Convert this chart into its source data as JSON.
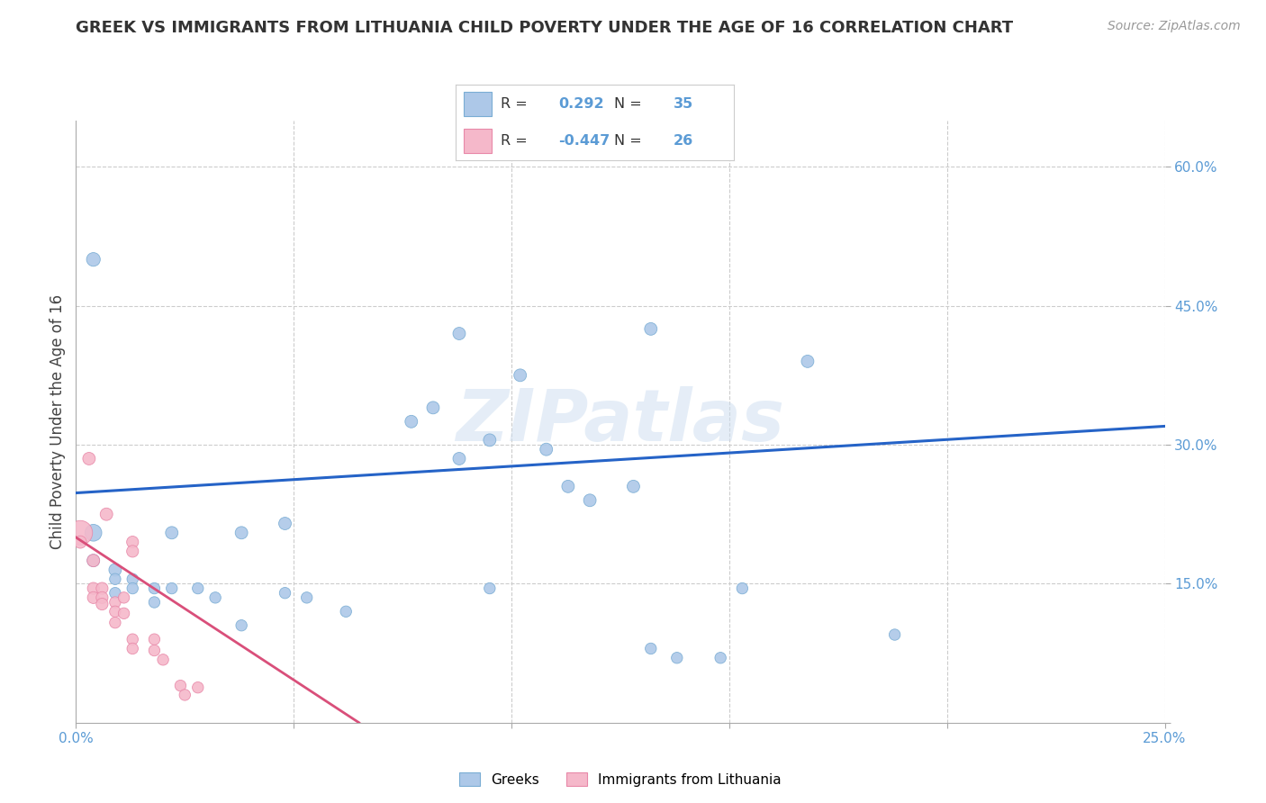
{
  "title": "GREEK VS IMMIGRANTS FROM LITHUANIA CHILD POVERTY UNDER THE AGE OF 16 CORRELATION CHART",
  "source": "Source: ZipAtlas.com",
  "ylabel": "Child Poverty Under the Age of 16",
  "xlim": [
    0.0,
    0.25
  ],
  "ylim": [
    0.0,
    0.65
  ],
  "watermark": "ZIPatlas",
  "blue_R": "0.292",
  "blue_N": "35",
  "pink_R": "-0.447",
  "pink_N": "26",
  "blue_color": "#adc8e8",
  "pink_color": "#f5b8ca",
  "blue_edge_color": "#7aadd4",
  "pink_edge_color": "#e888a8",
  "blue_line_color": "#2563c7",
  "pink_line_color": "#d94f7a",
  "tick_color": "#5B9BD5",
  "grid_color": "#cccccc",
  "blue_scatter": [
    [
      0.004,
      0.205
    ],
    [
      0.004,
      0.175
    ],
    [
      0.009,
      0.165
    ],
    [
      0.009,
      0.155
    ],
    [
      0.009,
      0.14
    ],
    [
      0.013,
      0.155
    ],
    [
      0.013,
      0.145
    ],
    [
      0.018,
      0.145
    ],
    [
      0.018,
      0.13
    ],
    [
      0.022,
      0.205
    ],
    [
      0.022,
      0.145
    ],
    [
      0.028,
      0.145
    ],
    [
      0.032,
      0.135
    ],
    [
      0.038,
      0.205
    ],
    [
      0.038,
      0.105
    ],
    [
      0.048,
      0.215
    ],
    [
      0.048,
      0.14
    ],
    [
      0.053,
      0.135
    ],
    [
      0.062,
      0.12
    ],
    [
      0.077,
      0.325
    ],
    [
      0.082,
      0.34
    ],
    [
      0.088,
      0.285
    ],
    [
      0.095,
      0.305
    ],
    [
      0.095,
      0.145
    ],
    [
      0.102,
      0.375
    ],
    [
      0.108,
      0.295
    ],
    [
      0.113,
      0.255
    ],
    [
      0.118,
      0.24
    ],
    [
      0.128,
      0.255
    ],
    [
      0.132,
      0.08
    ],
    [
      0.138,
      0.07
    ],
    [
      0.148,
      0.07
    ],
    [
      0.153,
      0.145
    ],
    [
      0.168,
      0.39
    ],
    [
      0.188,
      0.095
    ],
    [
      0.004,
      0.5
    ],
    [
      0.088,
      0.42
    ],
    [
      0.132,
      0.425
    ]
  ],
  "blue_sizes": [
    180,
    100,
    100,
    80,
    80,
    80,
    80,
    80,
    80,
    100,
    80,
    80,
    80,
    100,
    80,
    100,
    80,
    80,
    80,
    100,
    100,
    100,
    100,
    80,
    100,
    100,
    100,
    100,
    100,
    80,
    80,
    80,
    80,
    100,
    80,
    120,
    100,
    100
  ],
  "pink_scatter": [
    [
      0.001,
      0.205
    ],
    [
      0.001,
      0.195
    ],
    [
      0.004,
      0.175
    ],
    [
      0.004,
      0.145
    ],
    [
      0.004,
      0.135
    ],
    [
      0.006,
      0.145
    ],
    [
      0.006,
      0.135
    ],
    [
      0.006,
      0.128
    ],
    [
      0.009,
      0.13
    ],
    [
      0.009,
      0.12
    ],
    [
      0.009,
      0.108
    ],
    [
      0.011,
      0.135
    ],
    [
      0.011,
      0.118
    ],
    [
      0.013,
      0.195
    ],
    [
      0.013,
      0.185
    ],
    [
      0.013,
      0.09
    ],
    [
      0.013,
      0.08
    ],
    [
      0.018,
      0.09
    ],
    [
      0.018,
      0.078
    ],
    [
      0.02,
      0.068
    ],
    [
      0.024,
      0.04
    ],
    [
      0.025,
      0.03
    ],
    [
      0.003,
      0.285
    ],
    [
      0.007,
      0.225
    ],
    [
      0.028,
      0.038
    ]
  ],
  "pink_sizes": [
    380,
    100,
    100,
    90,
    90,
    90,
    90,
    90,
    80,
    80,
    80,
    80,
    80,
    90,
    90,
    80,
    80,
    80,
    80,
    80,
    80,
    80,
    100,
    100,
    80
  ],
  "blue_trendline": [
    [
      0.0,
      0.248
    ],
    [
      0.25,
      0.32
    ]
  ],
  "pink_trendline": [
    [
      0.0,
      0.2
    ],
    [
      0.065,
      0.0
    ]
  ]
}
